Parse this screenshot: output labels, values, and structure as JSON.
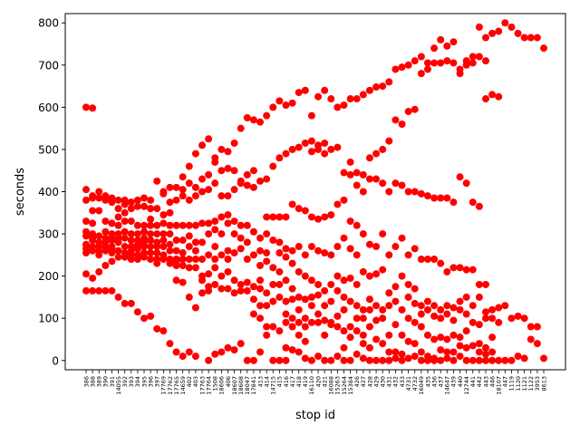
{
  "chart_data": {
    "type": "scatter",
    "title": "",
    "xlabel": "stop id",
    "ylabel": "seconds",
    "ylim": [
      -22,
      822
    ],
    "yticks": [
      0,
      100,
      200,
      300,
      400,
      500,
      600,
      700,
      800
    ],
    "grid": false,
    "legend": "none",
    "marker_color": "#ff0000",
    "categories": [
      "386",
      "388",
      "389",
      "390",
      "391",
      "14055",
      "392",
      "393",
      "394",
      "395",
      "396",
      "397",
      "17769",
      "17762",
      "17765",
      "14659",
      "402",
      "403",
      "17763",
      "17764",
      "1508",
      "18606",
      "406",
      "18607",
      "18608",
      "18047",
      "17841",
      "413",
      "414",
      "14715",
      "415",
      "416",
      "417",
      "418",
      "419",
      "16110",
      "420",
      "421",
      "16088",
      "15263",
      "15264",
      "15384",
      "426",
      "427",
      "428",
      "429",
      "430",
      "431",
      "432",
      "433",
      "4731",
      "4732",
      "16049",
      "435",
      "436",
      "437",
      "14647",
      "439",
      "440",
      "12744",
      "441",
      "442",
      "443",
      "446",
      "18107",
      "447",
      "1119",
      "1120",
      "1121",
      "1122",
      "3953",
      "8613"
    ],
    "points": [
      {
        "x": "386",
        "y": [
          600,
          405,
          380,
          330,
          305,
          295,
          275,
          265,
          255,
          205,
          165
        ]
      },
      {
        "x": "388",
        "y": [
          598,
          390,
          385,
          355,
          325,
          300,
          290,
          285,
          270,
          260,
          195,
          165
        ]
      },
      {
        "x": "389",
        "y": [
          400,
          385,
          355,
          295,
          280,
          270,
          260,
          250,
          210,
          165
        ]
      },
      {
        "x": "390",
        "y": [
          390,
          380,
          330,
          305,
          290,
          280,
          270,
          260,
          225,
          165
        ]
      },
      {
        "x": "391",
        "y": [
          385,
          375,
          325,
          300,
          290,
          285,
          270,
          265,
          255,
          235,
          165
        ]
      },
      {
        "x": "14055",
        "y": [
          380,
          360,
          340,
          320,
          300,
          290,
          280,
          260,
          245,
          150
        ]
      },
      {
        "x": "392",
        "y": [
          380,
          370,
          350,
          330,
          305,
          290,
          270,
          255,
          245,
          135
        ]
      },
      {
        "x": "393",
        "y": [
          375,
          360,
          330,
          300,
          285,
          270,
          260,
          250,
          240,
          135
        ]
      },
      {
        "x": "394",
        "y": [
          380,
          365,
          320,
          300,
          285,
          275,
          265,
          250,
          240,
          115
        ]
      },
      {
        "x": "395",
        "y": [
          385,
          365,
          320,
          305,
          290,
          280,
          270,
          255,
          245,
          100
        ]
      },
      {
        "x": "396",
        "y": [
          380,
          360,
          335,
          320,
          300,
          285,
          270,
          255,
          240,
          105
        ]
      },
      {
        "x": "397",
        "y": [
          425,
          360,
          320,
          300,
          280,
          270,
          255,
          240,
          230,
          75
        ]
      },
      {
        "x": "17769",
        "y": [
          400,
          395,
          345,
          325,
          300,
          285,
          270,
          250,
          240,
          70
        ]
      },
      {
        "x": "17762",
        "y": [
          410,
          375,
          350,
          320,
          300,
          275,
          260,
          240,
          230,
          40
        ]
      },
      {
        "x": "17765",
        "y": [
          410,
          380,
          320,
          285,
          260,
          240,
          235,
          225,
          190,
          20
        ]
      },
      {
        "x": "14659",
        "y": [
          435,
          405,
          390,
          320,
          285,
          255,
          240,
          225,
          185,
          10
        ]
      },
      {
        "x": "402",
        "y": [
          460,
          420,
          380,
          320,
          295,
          270,
          240,
          220,
          150,
          20
        ]
      },
      {
        "x": "403",
        "y": [
          490,
          410,
          390,
          320,
          280,
          260,
          240,
          220,
          125,
          10
        ]
      },
      {
        "x": "17763",
        "y": [
          510,
          430,
          400,
          325,
          280,
          240,
          200,
          190,
          160
        ]
      },
      {
        "x": "17764",
        "y": [
          525,
          440,
          405,
          325,
          300,
          250,
          205,
          175,
          165,
          0
        ]
      },
      {
        "x": "1508",
        "y": [
          480,
          470,
          420,
          330,
          310,
          270,
          240,
          220,
          180,
          15
        ]
      },
      {
        "x": "18606",
        "y": [
          500,
          450,
          390,
          340,
          300,
          250,
          200,
          170,
          20
        ]
      },
      {
        "x": "406",
        "y": [
          495,
          455,
          390,
          345,
          325,
          260,
          240,
          210,
          170,
          30
        ]
      },
      {
        "x": "18607",
        "y": [
          515,
          450,
          405,
          330,
          300,
          255,
          190,
          160,
          25
        ]
      },
      {
        "x": "18608",
        "y": [
          550,
          425,
          420,
          320,
          290,
          265,
          180,
          165,
          40
        ]
      },
      {
        "x": "18047",
        "y": [
          575,
          440,
          415,
          320,
          280,
          240,
          185,
          165,
          0
        ]
      },
      {
        "x": "17841",
        "y": [
          570,
          450,
          410,
          305,
          250,
          175,
          145,
          110,
          0
        ]
      },
      {
        "x": "413",
        "y": [
          565,
          425,
          290,
          260,
          225,
          190,
          170,
          130,
          100,
          20
        ]
      },
      {
        "x": "414",
        "y": [
          580,
          430,
          340,
          300,
          255,
          235,
          160,
          130,
          80,
          60
        ]
      },
      {
        "x": "14715",
        "y": [
          600,
          460,
          340,
          285,
          220,
          180,
          140,
          80,
          0
        ]
      },
      {
        "x": "415",
        "y": [
          615,
          480,
          340,
          280,
          255,
          210,
          180,
          150,
          70,
          0
        ]
      },
      {
        "x": "416",
        "y": [
          605,
          490,
          340,
          265,
          245,
          190,
          140,
          110,
          90,
          30,
          0
        ]
      },
      {
        "x": "417",
        "y": [
          610,
          500,
          370,
          260,
          230,
          170,
          145,
          100,
          80,
          25
        ]
      },
      {
        "x": "418",
        "y": [
          635,
          505,
          360,
          270,
          210,
          150,
          120,
          90,
          60,
          20
        ]
      },
      {
        "x": "419",
        "y": [
          640,
          515,
          355,
          250,
          200,
          145,
          100,
          80,
          45,
          5
        ]
      },
      {
        "x": "16110",
        "y": [
          580,
          520,
          495,
          340,
          270,
          190,
          150,
          130,
          90,
          0
        ]
      },
      {
        "x": "420",
        "y": [
          625,
          510,
          500,
          335,
          260,
          180,
          155,
          110,
          90,
          10
        ]
      },
      {
        "x": "421",
        "y": [
          640,
          515,
          490,
          340,
          255,
          165,
          130,
          95,
          60,
          0
        ]
      },
      {
        "x": "16088",
        "y": [
          620,
          500,
          345,
          250,
          180,
          140,
          90,
          85,
          0
        ]
      },
      {
        "x": "15263",
        "y": [
          600,
          505,
          370,
          270,
          200,
          165,
          105,
          80,
          10
        ]
      },
      {
        "x": "15264",
        "y": [
          605,
          445,
          380,
          290,
          190,
          150,
          120,
          70,
          30,
          0
        ]
      },
      {
        "x": "15384",
        "y": [
          620,
          470,
          440,
          330,
          265,
          195,
          140,
          80,
          55,
          0
        ]
      },
      {
        "x": "426",
        "y": [
          620,
          445,
          415,
          320,
          250,
          180,
          130,
          100,
          70,
          15
        ]
      },
      {
        "x": "427",
        "y": [
          630,
          440,
          400,
          300,
          210,
          120,
          100,
          60,
          40,
          5
        ]
      },
      {
        "x": "428",
        "y": [
          640,
          480,
          430,
          275,
          200,
          145,
          120,
          80,
          30,
          0
        ]
      },
      {
        "x": "429",
        "y": [
          648,
          490,
          430,
          270,
          205,
          130,
          95,
          50,
          0
        ]
      },
      {
        "x": "430",
        "y": [
          650,
          500,
          420,
          300,
          215,
          120,
          100,
          40,
          0
        ]
      },
      {
        "x": "431",
        "y": [
          660,
          520,
          400,
          250,
          160,
          130,
          60,
          20,
          0
        ]
      },
      {
        "x": "432",
        "y": [
          690,
          570,
          420,
          270,
          175,
          140,
          85,
          20,
          5
        ]
      },
      {
        "x": "433",
        "y": [
          695,
          560,
          415,
          290,
          200,
          120,
          60,
          15,
          0
        ]
      },
      {
        "x": "4731",
        "y": [
          700,
          590,
          400,
          250,
          180,
          150,
          100,
          45,
          5
        ]
      },
      {
        "x": "4732",
        "y": [
          710,
          595,
          400,
          265,
          170,
          135,
          90,
          40,
          10
        ]
      },
      {
        "x": "16049",
        "y": [
          720,
          680,
          395,
          240,
          130,
          110,
          80,
          20,
          0
        ]
      },
      {
        "x": "435",
        "y": [
          705,
          690,
          390,
          240,
          140,
          120,
          60,
          10,
          0
        ]
      },
      {
        "x": "436",
        "y": [
          740,
          705,
          385,
          240,
          130,
          105,
          50,
          5,
          0
        ]
      },
      {
        "x": "437",
        "y": [
          760,
          705,
          385,
          230,
          120,
          100,
          55,
          25,
          0
        ]
      },
      {
        "x": "14647",
        "y": [
          745,
          710,
          385,
          210,
          130,
          110,
          50,
          20,
          5
        ]
      },
      {
        "x": "439",
        "y": [
          755,
          705,
          375,
          220,
          125,
          95,
          60,
          20,
          0
        ]
      },
      {
        "x": "440",
        "y": [
          690,
          680,
          435,
          220,
          140,
          120,
          55,
          35,
          10
        ]
      },
      {
        "x": "12744",
        "y": [
          710,
          700,
          420,
          215,
          150,
          110,
          70,
          30,
          0
        ]
      },
      {
        "x": "441",
        "y": [
          720,
          705,
          375,
          215,
          130,
          90,
          35,
          0
        ]
      },
      {
        "x": "442",
        "y": [
          790,
          720,
          365,
          180,
          150,
          85,
          40,
          20,
          0
        ]
      },
      {
        "x": "443",
        "y": [
          765,
          710,
          620,
          180,
          115,
          100,
          30,
          15,
          0
        ]
      },
      {
        "x": "446",
        "y": [
          775,
          630,
          120,
          100,
          55,
          20,
          0
        ]
      },
      {
        "x": "18107",
        "y": [
          780,
          625,
          125,
          90,
          0
        ]
      },
      {
        "x": "447",
        "y": [
          800,
          130,
          0
        ]
      },
      {
        "x": "1119",
        "y": [
          790,
          100,
          0
        ]
      },
      {
        "x": "1120",
        "y": [
          775,
          105,
          10
        ]
      },
      {
        "x": "1121",
        "y": [
          765,
          100,
          5
        ]
      },
      {
        "x": "1122",
        "y": [
          765,
          80,
          50
        ]
      },
      {
        "x": "3953",
        "y": [
          765,
          80,
          40
        ]
      },
      {
        "x": "8613",
        "y": [
          740,
          5
        ]
      }
    ]
  }
}
